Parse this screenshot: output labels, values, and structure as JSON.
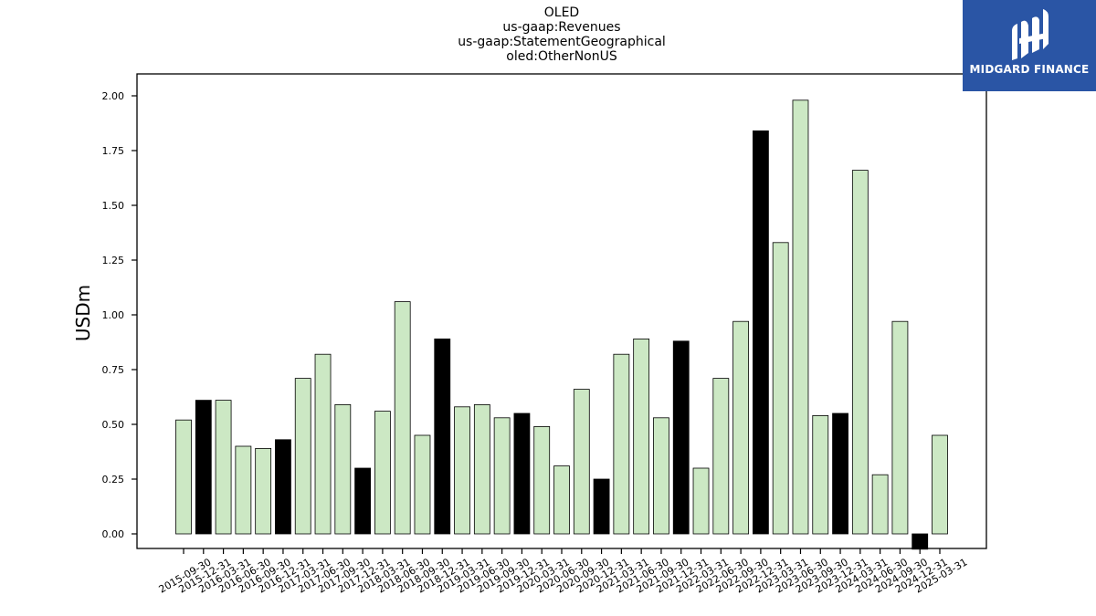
{
  "chart_data": {
    "type": "bar",
    "title_lines": [
      "OLED",
      "us-gaap:Revenues",
      "us-gaap:StatementGeographical",
      "oled:OtherNonUS"
    ],
    "ylabel": "USDm",
    "xlabel": "",
    "ylim": [
      -0.07,
      2.1
    ],
    "yticks": [
      "0.00",
      "0.25",
      "0.50",
      "0.75",
      "1.00",
      "1.25",
      "1.50",
      "1.75",
      "2.00"
    ],
    "grid": false,
    "categories": [
      "2015-09-30",
      "2015-12-31",
      "2016-03-31",
      "2016-06-30",
      "2016-09-30",
      "2016-12-31",
      "2017-03-31",
      "2017-06-30",
      "2017-09-30",
      "2017-12-31",
      "2018-03-31",
      "2018-06-30",
      "2018-09-30",
      "2018-12-31",
      "2019-03-31",
      "2019-06-30",
      "2019-09-30",
      "2019-12-31",
      "2020-03-31",
      "2020-06-30",
      "2020-09-30",
      "2020-12-31",
      "2021-03-31",
      "2021-06-30",
      "2021-09-30",
      "2021-12-31",
      "2022-03-31",
      "2022-06-30",
      "2022-09-30",
      "2022-12-31",
      "2023-03-31",
      "2023-06-30",
      "2023-09-30",
      "2023-12-31",
      "2024-03-31",
      "2024-06-30",
      "2024-09-30",
      "2024-12-31",
      "2025-03-31"
    ],
    "values": [
      0.52,
      0.61,
      0.61,
      0.4,
      0.39,
      0.43,
      0.71,
      0.82,
      0.59,
      0.3,
      0.56,
      1.06,
      0.45,
      0.89,
      0.58,
      0.59,
      0.53,
      0.55,
      0.49,
      0.31,
      0.66,
      0.25,
      0.82,
      0.89,
      0.53,
      0.88,
      0.3,
      0.71,
      0.97,
      1.84,
      1.33,
      1.98,
      0.54,
      0.55,
      1.66,
      0.27,
      0.97,
      -0.07,
      0.45
    ],
    "fourth_quarter_flags": [
      false,
      true,
      false,
      false,
      false,
      true,
      false,
      false,
      false,
      true,
      false,
      false,
      false,
      true,
      false,
      false,
      false,
      true,
      false,
      false,
      false,
      true,
      false,
      false,
      false,
      true,
      false,
      false,
      false,
      true,
      false,
      false,
      false,
      true,
      false,
      false,
      false,
      true,
      false
    ],
    "colors": {
      "quarter_bar": "#cce8c4",
      "fourth_quarter_bar": "#000000",
      "bar_edge": "#000000"
    }
  },
  "logo": {
    "text": "MIDGARD FINANCE",
    "background": "#2a55a5"
  }
}
